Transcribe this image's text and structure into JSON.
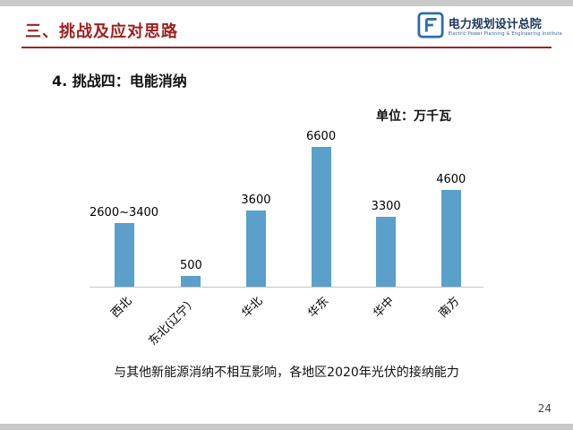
{
  "slide": {
    "header": {
      "title": "三、挑战及应对思路"
    },
    "logo": {
      "name": "电力规划设计总院",
      "subtitle": "Electric Power Planning & Engineering Institute"
    },
    "subtitle": "4. 挑战四：电能消纳",
    "caption": "与其他新能源消纳不相互影响，各地区2020年光伏的接纳能力",
    "page_number": "24"
  },
  "colors": {
    "accent_red": "#A32222",
    "title_red": "#9E1F1F",
    "bar_blue": "#5B9FCB",
    "logo_navy": "#17365D"
  },
  "chart_data": {
    "type": "bar",
    "title": "",
    "unit_label": "单位：万千瓦",
    "categories": [
      "西北",
      "东北(辽宁）",
      "华北",
      "华东",
      "华中",
      "南方"
    ],
    "values": [
      3000,
      500,
      3600,
      6600,
      3300,
      4600
    ],
    "value_labels": [
      "2600~3400",
      "500",
      "3600",
      "6600",
      "3300",
      "4600"
    ],
    "ylim": [
      0,
      7000
    ],
    "bar_color": "#5B9FCB",
    "legend": "none",
    "grid": "off"
  }
}
